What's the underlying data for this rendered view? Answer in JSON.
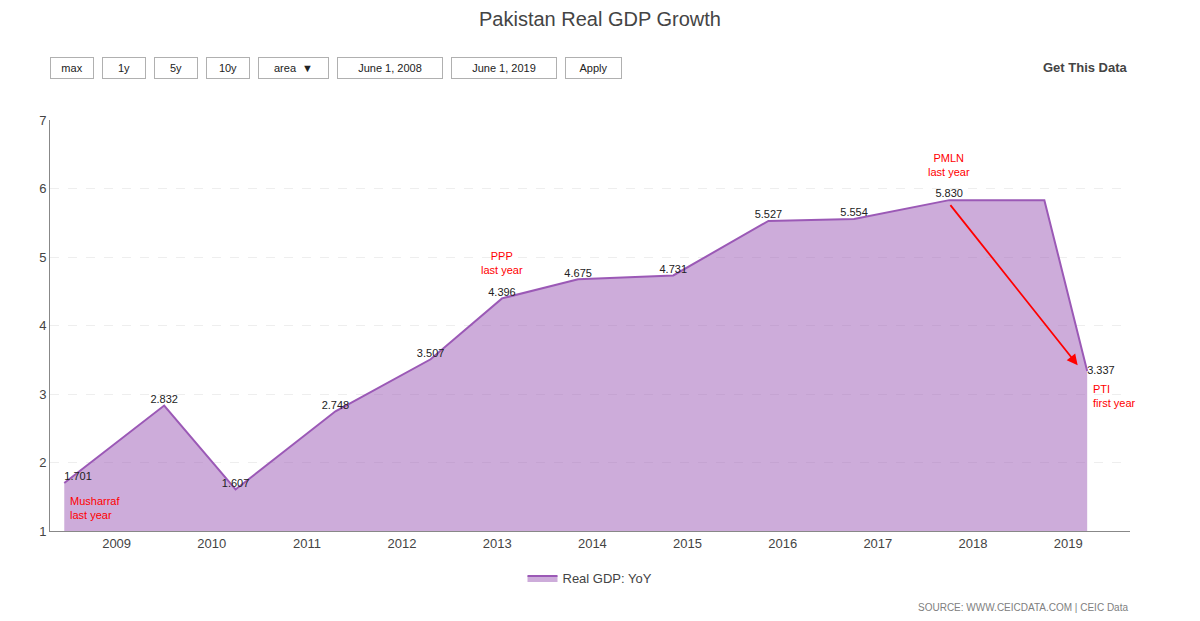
{
  "chart_data": {
    "type": "area",
    "title": "Pakistan Real GDP Growth",
    "x": [
      2008.45,
      2009.5,
      2010.25,
      2011.3,
      2012.3,
      2013.05,
      2013.85,
      2014.85,
      2015.85,
      2016.75,
      2017.75,
      2018.75,
      2019.2
    ],
    "series": [
      {
        "name": "Real GDP: YoY",
        "color": "#9b59b6",
        "values": [
          1.701,
          2.832,
          1.607,
          2.748,
          3.507,
          4.396,
          4.675,
          4.731,
          5.527,
          5.554,
          5.83,
          5.83,
          3.337
        ],
        "value_labels": [
          "1.701",
          "2.832",
          "1.607",
          "2.748",
          "3.507",
          "4.396",
          "4.675",
          "4.731",
          "5.527",
          "5.554",
          "5.830",
          null,
          "3.337"
        ]
      }
    ],
    "xlim": [
      2008.3,
      2019.65
    ],
    "xticks": [
      2009,
      2010,
      2011,
      2012,
      2013,
      2014,
      2015,
      2016,
      2017,
      2018,
      2019
    ],
    "ylim": [
      1,
      7
    ],
    "yticks": [
      1,
      2,
      3,
      4,
      5,
      6,
      7
    ],
    "grid": true,
    "legend": "bottom",
    "data_labels": true,
    "annotations": [
      {
        "text": "Musharraf\nlast year",
        "x": 2008.45,
        "y": 1.701,
        "side": "below",
        "color": "red"
      },
      {
        "text": "PPP\nlast year",
        "x": 2013.05,
        "y": 4.396,
        "side": "above",
        "color": "red"
      },
      {
        "text": "PMLN\nlast year",
        "x": 2017.75,
        "y": 5.83,
        "side": "above",
        "color": "red"
      },
      {
        "text": "PTI\nfirst year",
        "x": 2019.2,
        "y": 3.337,
        "side": "below",
        "color": "red"
      }
    ],
    "arrow": {
      "from": [
        2017.75,
        5.78
      ],
      "to": [
        2019.1,
        3.42
      ],
      "color": "red"
    },
    "source": "SOURCE: WWW.CEICDATA.COM | CEIC Data",
    "link_text": "Get This Data",
    "controls": [
      "max",
      "1y",
      "5y",
      "10y",
      "area  ▼",
      "June 1, 2008",
      "June 1, 2019",
      "Apply"
    ]
  }
}
